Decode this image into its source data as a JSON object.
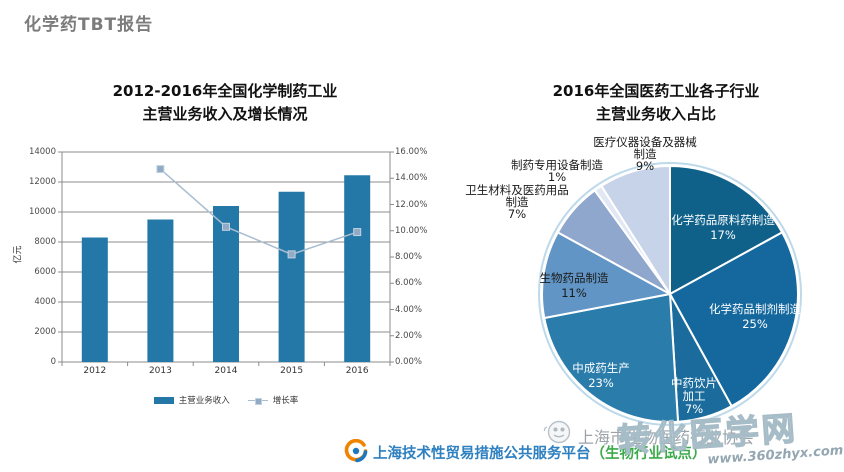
{
  "page": {
    "title": "化学药TBT报告"
  },
  "left_chart": {
    "title_lines": [
      "2012-2016年全国化学制药工业",
      "主营业务收入及增长情况"
    ],
    "y_axis_title": "亿元",
    "legend": {
      "revenue": "主营业务收入",
      "growth": "增长率"
    }
  },
  "right_chart": {
    "title_lines": [
      "2016年全国医药工业各子行业",
      "主营业务收入占比"
    ]
  },
  "chart_data": [
    {
      "type": "bar",
      "title": "2012-2016年全国化学制药工业主营业务收入及增长情况",
      "categories": [
        "2012",
        "2013",
        "2014",
        "2015",
        "2016"
      ],
      "series": [
        {
          "name": "主营业务收入",
          "type": "bar",
          "axis": "left",
          "unit": "亿元",
          "values": [
            8300,
            9500,
            10400,
            11350,
            12450
          ],
          "color": "#2478a8"
        },
        {
          "name": "增长率",
          "type": "line",
          "axis": "right",
          "unit": "%",
          "values": [
            null,
            14.7,
            10.3,
            8.2,
            9.9
          ],
          "color": "#a9bdd1",
          "marker_color": "#91abc7",
          "marker_border": "#c3d2e0"
        }
      ],
      "left_axis": {
        "label": "亿元",
        "min": 0,
        "max": 14000,
        "step": 2000
      },
      "right_axis": {
        "min": 0,
        "max": 16,
        "step": 2,
        "suffix": "%"
      },
      "grid": true,
      "legend_position": "bottom"
    },
    {
      "type": "pie",
      "title": "2016年全国医药工业各子行业主营业务收入占比",
      "ring_color": "#bdd9ea",
      "slices": [
        {
          "label": "化学药品原料药制造",
          "value": 17,
          "color": "#10618a"
        },
        {
          "label": "化学药品制剂制造",
          "value": 25,
          "color": "#15689d"
        },
        {
          "label": "中药饮片加工",
          "value": 7,
          "color": "#1b6c9c"
        },
        {
          "label": "中成药生产",
          "value": 23,
          "color": "#2a7cab"
        },
        {
          "label": "生物药品制造",
          "value": 11,
          "color": "#6095c5"
        },
        {
          "label": "卫生材料及医药用品制造",
          "value": 7,
          "color": "#8fa6cd"
        },
        {
          "label": "制药专用设备制造",
          "value": 1,
          "color": "#e2e8f3"
        },
        {
          "label": "医疗仪器设备及器械制造",
          "value": 9,
          "color": "#c7d3e9"
        }
      ]
    }
  ],
  "footer": {
    "platform_name": "上海技术性贸易措施公共服务平台",
    "platform_suffix": "（生物行业试点）",
    "association_name": "上海市生物医药行业协会",
    "watermark_text": "转化医学网",
    "watermark_url": "www.360zhyx.com"
  }
}
